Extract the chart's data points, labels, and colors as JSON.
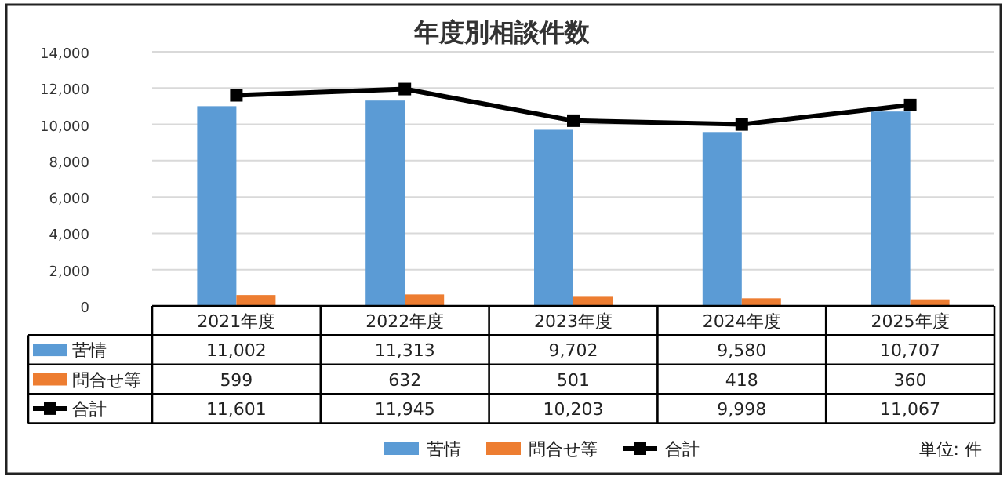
{
  "chart_data": {
    "type": "bar",
    "title": "年度別相談件数",
    "categories": [
      "2021年度",
      "2022年度",
      "2023年度",
      "2024年度",
      "2025年度"
    ],
    "series": [
      {
        "name": "苦情",
        "color": "#5b9bd5",
        "values": [
          11002,
          11313,
          9702,
          9580,
          10707
        ],
        "value_labels": [
          "11,002",
          "11,313",
          "9,702",
          "9,580",
          "10,707"
        ]
      },
      {
        "name": "問合せ等",
        "color": "#ed7d31",
        "values": [
          599,
          632,
          501,
          418,
          360
        ],
        "value_labels": [
          "599",
          "632",
          "501",
          "418",
          "360"
        ]
      },
      {
        "name": "合計",
        "type": "line",
        "color": "#000000",
        "marker": "square",
        "values": [
          11601,
          11945,
          10203,
          9998,
          11067
        ],
        "value_labels": [
          "11,601",
          "11,945",
          "10,203",
          "9,998",
          "11,067"
        ]
      }
    ],
    "ylim": [
      0,
      14000
    ],
    "yticks": [
      0,
      {
        "value": 2000,
        "label": "2,000"
      },
      {
        "value": 4000,
        "label": "4,000"
      },
      {
        "value": 6000,
        "label": "6,000"
      },
      {
        "value": 8000,
        "label": "8,000"
      },
      {
        "value": 10000,
        "label": "10,000"
      },
      {
        "value": 12000,
        "label": "12,000"
      },
      {
        "value": 14000,
        "label": "14,000"
      }
    ],
    "grid": "y",
    "legend": "bottom",
    "annotations": [
      "単位: 件"
    ]
  }
}
